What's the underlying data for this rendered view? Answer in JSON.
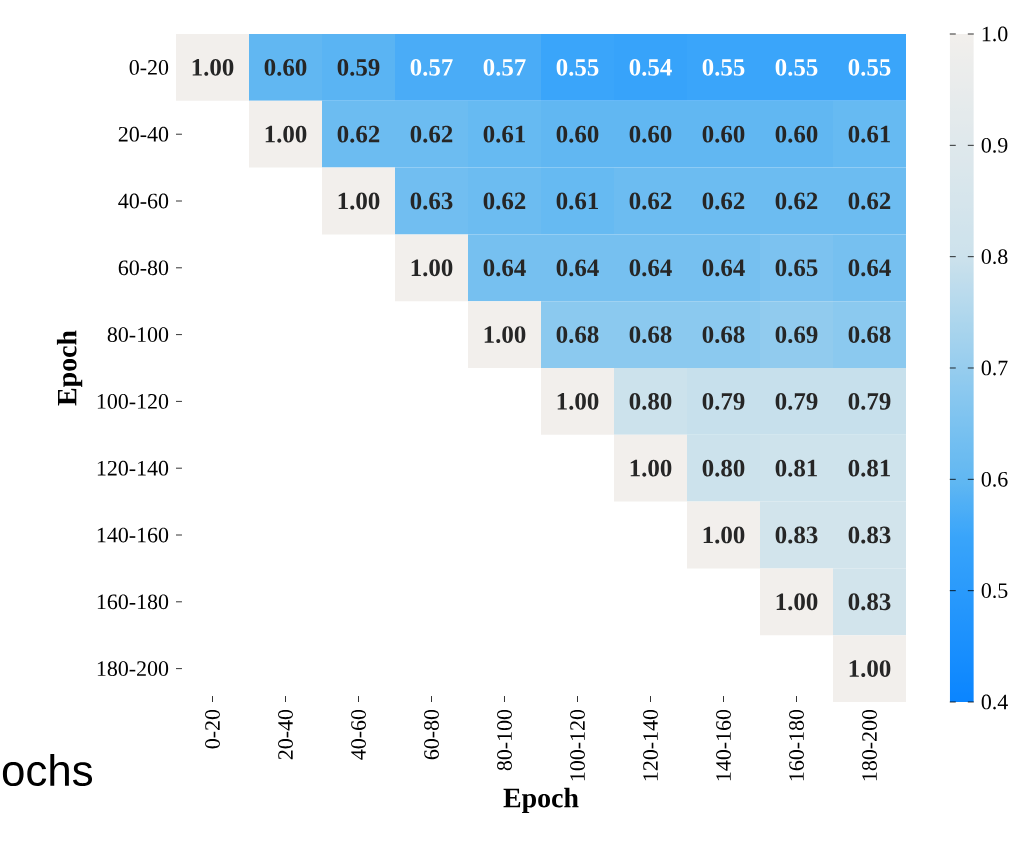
{
  "chart_data": {
    "type": "heatmap",
    "xlabel": "Epoch",
    "ylabel": "Epoch",
    "categories": [
      "0-20",
      "20-40",
      "40-60",
      "60-80",
      "80-100",
      "100-120",
      "120-140",
      "140-160",
      "160-180",
      "180-200"
    ],
    "y_categories": [
      "0-20",
      "20-40",
      "40-60",
      "60-80",
      "80-100",
      "100-120",
      "120-140",
      "140-160",
      "160-180",
      "180-200"
    ],
    "cells": [
      [
        1.0,
        0.6,
        0.59,
        0.57,
        0.57,
        0.55,
        0.54,
        0.55,
        0.55,
        0.55
      ],
      [
        null,
        1.0,
        0.62,
        0.62,
        0.61,
        0.6,
        0.6,
        0.6,
        0.6,
        0.61
      ],
      [
        null,
        null,
        1.0,
        0.63,
        0.62,
        0.61,
        0.62,
        0.62,
        0.62,
        0.62
      ],
      [
        null,
        null,
        null,
        1.0,
        0.64,
        0.64,
        0.64,
        0.64,
        0.65,
        0.64
      ],
      [
        null,
        null,
        null,
        null,
        1.0,
        0.68,
        0.68,
        0.68,
        0.69,
        0.68
      ],
      [
        null,
        null,
        null,
        null,
        null,
        1.0,
        0.8,
        0.79,
        0.79,
        0.79
      ],
      [
        null,
        null,
        null,
        null,
        null,
        null,
        1.0,
        0.8,
        0.81,
        0.81
      ],
      [
        null,
        null,
        null,
        null,
        null,
        null,
        null,
        1.0,
        0.83,
        0.83
      ],
      [
        null,
        null,
        null,
        null,
        null,
        null,
        null,
        null,
        1.0,
        0.83
      ],
      [
        null,
        null,
        null,
        null,
        null,
        null,
        null,
        null,
        null,
        1.0
      ]
    ],
    "cell_labels": [
      [
        "1.00",
        "0.60",
        "0.59",
        "0.57",
        "0.57",
        "0.55",
        "0.54",
        "0.55",
        "0.55",
        "0.55"
      ],
      [
        null,
        "1.00",
        "0.62",
        "0.62",
        "0.61",
        "0.60",
        "0.60",
        "0.60",
        "0.60",
        "0.61"
      ],
      [
        null,
        null,
        "1.00",
        "0.63",
        "0.62",
        "0.61",
        "0.62",
        "0.62",
        "0.62",
        "0.62"
      ],
      [
        null,
        null,
        null,
        "1.00",
        "0.64",
        "0.64",
        "0.64",
        "0.64",
        "0.65",
        "0.64"
      ],
      [
        null,
        null,
        null,
        null,
        "1.00",
        "0.68",
        "0.68",
        "0.68",
        "0.69",
        "0.68"
      ],
      [
        null,
        null,
        null,
        null,
        null,
        "1.00",
        "0.80",
        "0.79",
        "0.79",
        "0.79"
      ],
      [
        null,
        null,
        null,
        null,
        null,
        null,
        "1.00",
        "0.80",
        "0.81",
        "0.81"
      ],
      [
        null,
        null,
        null,
        null,
        null,
        null,
        null,
        "1.00",
        "0.83",
        "0.83"
      ],
      [
        null,
        null,
        null,
        null,
        null,
        null,
        null,
        null,
        "1.00",
        "0.83"
      ],
      [
        null,
        null,
        null,
        null,
        null,
        null,
        null,
        null,
        null,
        "1.00"
      ]
    ],
    "clim": [
      0.4,
      1.0
    ],
    "cticks": [
      0.4,
      0.5,
      0.6,
      0.7,
      0.8,
      0.9,
      {
        "value": 1,
        "label": "1.0"
      }
    ],
    "annotations": [
      "ochs"
    ]
  }
}
